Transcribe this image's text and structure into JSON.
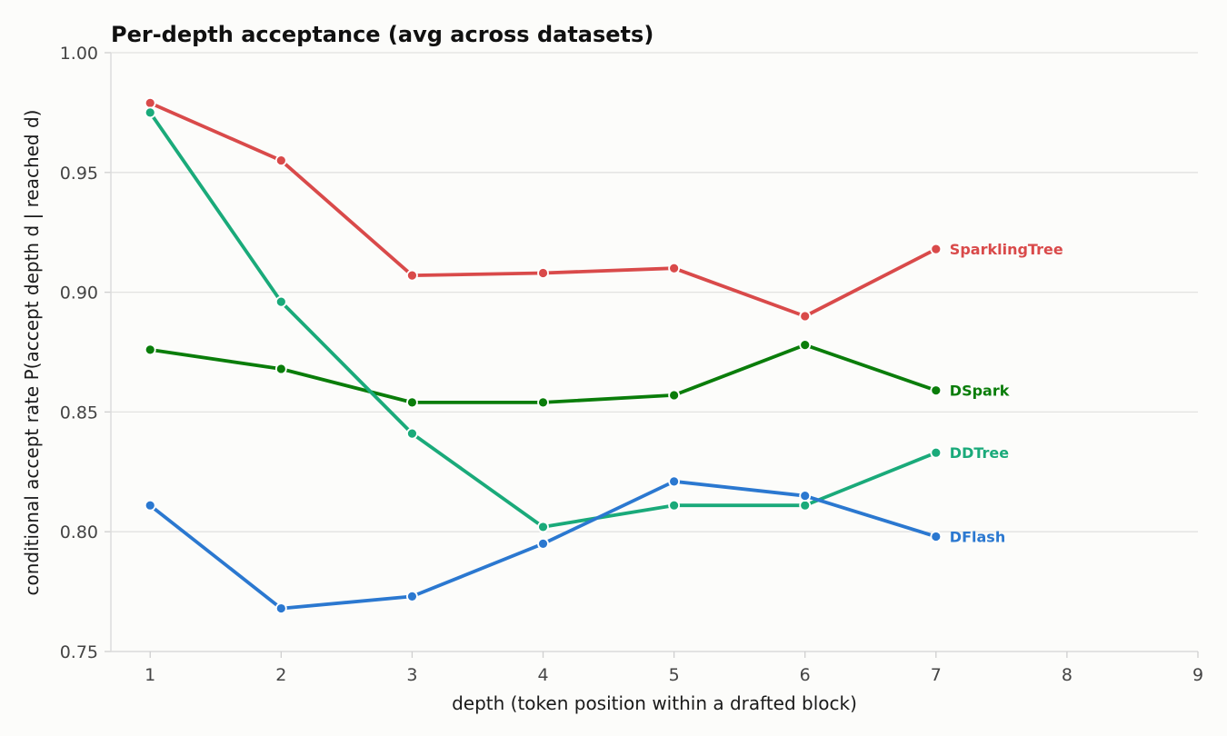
{
  "chart_data": {
    "type": "line",
    "title": "Per-depth acceptance (avg across datasets)",
    "xlabel": "depth (token position within a drafted block)",
    "ylabel": "conditional accept rate  P(accept depth d | reached d)",
    "xlim": [
      0.7,
      9
    ],
    "ylim": [
      0.75,
      1.0
    ],
    "x_ticks": [
      1,
      2,
      3,
      4,
      5,
      6,
      7,
      8,
      9
    ],
    "y_ticks": [
      0.75,
      0.8,
      0.85,
      0.9,
      0.95,
      1.0
    ],
    "y_tick_labels": [
      "0.75",
      "0.80",
      "0.85",
      "0.90",
      "0.95",
      "1.00"
    ],
    "grid": "horizontal",
    "legend": "inline labels at line ends",
    "x": [
      1,
      2,
      3,
      4,
      5,
      6,
      7
    ],
    "series": [
      {
        "name": "SparklingTree",
        "color": "#d94a4a",
        "values": [
          0.979,
          0.955,
          0.907,
          0.908,
          0.91,
          0.89,
          0.918
        ]
      },
      {
        "name": "DSpark",
        "color": "#0a7d0a",
        "values": [
          0.876,
          0.868,
          0.854,
          0.854,
          0.857,
          0.878,
          0.859
        ]
      },
      {
        "name": "DDTree",
        "color": "#1aaa7a",
        "values": [
          0.975,
          0.896,
          0.841,
          0.802,
          0.811,
          0.811,
          0.833
        ]
      },
      {
        "name": "DFlash",
        "color": "#2b78d0",
        "values": [
          0.811,
          0.768,
          0.773,
          0.795,
          0.821,
          0.815,
          0.798
        ]
      }
    ]
  }
}
